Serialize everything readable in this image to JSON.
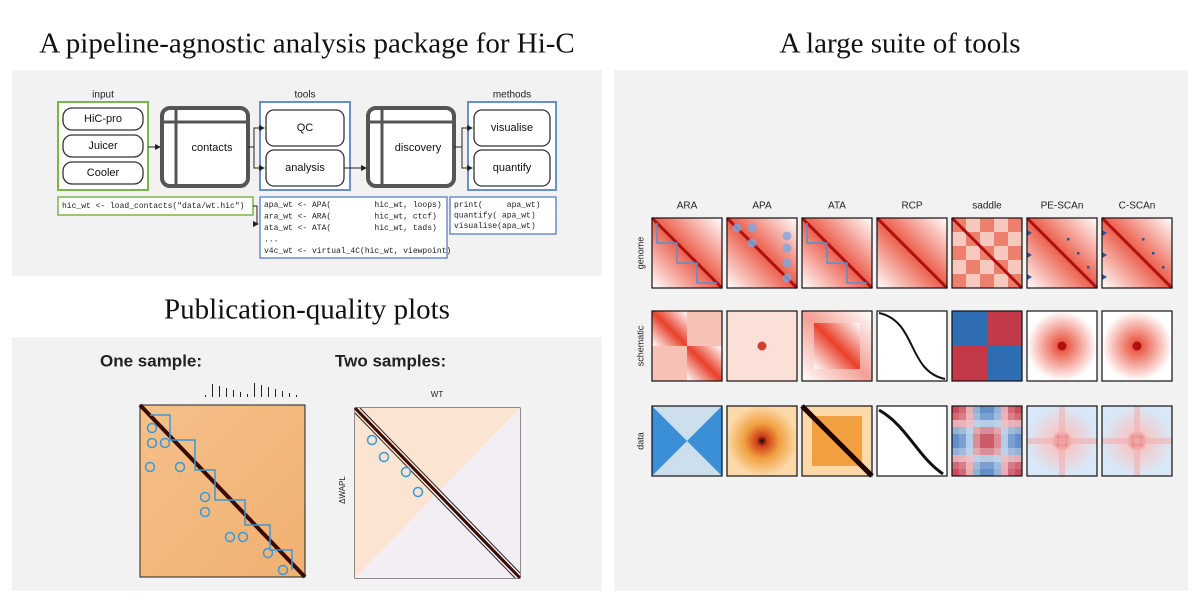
{
  "pipeline": {
    "title": "A pipeline-agnostic analysis package for Hi-C",
    "groups": {
      "input": "input",
      "tools": "tools",
      "methods": "methods"
    },
    "nodes": {
      "hicpro": "HiC-pro",
      "juicer": "Juicer",
      "cooler": "Cooler",
      "contacts": "contacts",
      "qc": "QC",
      "analysis": "analysis",
      "discovery": "discovery",
      "visualise": "visualise",
      "quantify": "quantify"
    },
    "code": {
      "load": "hic_wt <- load_contacts(\"data/wt.hic\")",
      "analysis": [
        "apa_wt <- APA(         hic_wt, loops)",
        "ara_wt <- ARA(         hic_wt, ctcf)",
        "ata_wt <- ATA(         hic_wt, tads)",
        "...",
        "v4c_wt <- virtual_4C(hic_wt, viewpoint)"
      ],
      "methods": [
        "print(     apa_wt)",
        "quantify( apa_wt)",
        "visualise(apa_wt)"
      ]
    }
  },
  "tools": {
    "title": "A large suite of tools",
    "columns": [
      "ARA",
      "APA",
      "ATA",
      "RCP",
      "saddle",
      "PE-SCAn",
      "C-SCAn"
    ],
    "rows": [
      "genome",
      "schematic",
      "data"
    ]
  },
  "plots": {
    "title": "Publication-quality plots",
    "one_sample": "One sample:",
    "two_samples": "Two samples:",
    "wt": "WT",
    "mutant": "ΔWAPL"
  }
}
